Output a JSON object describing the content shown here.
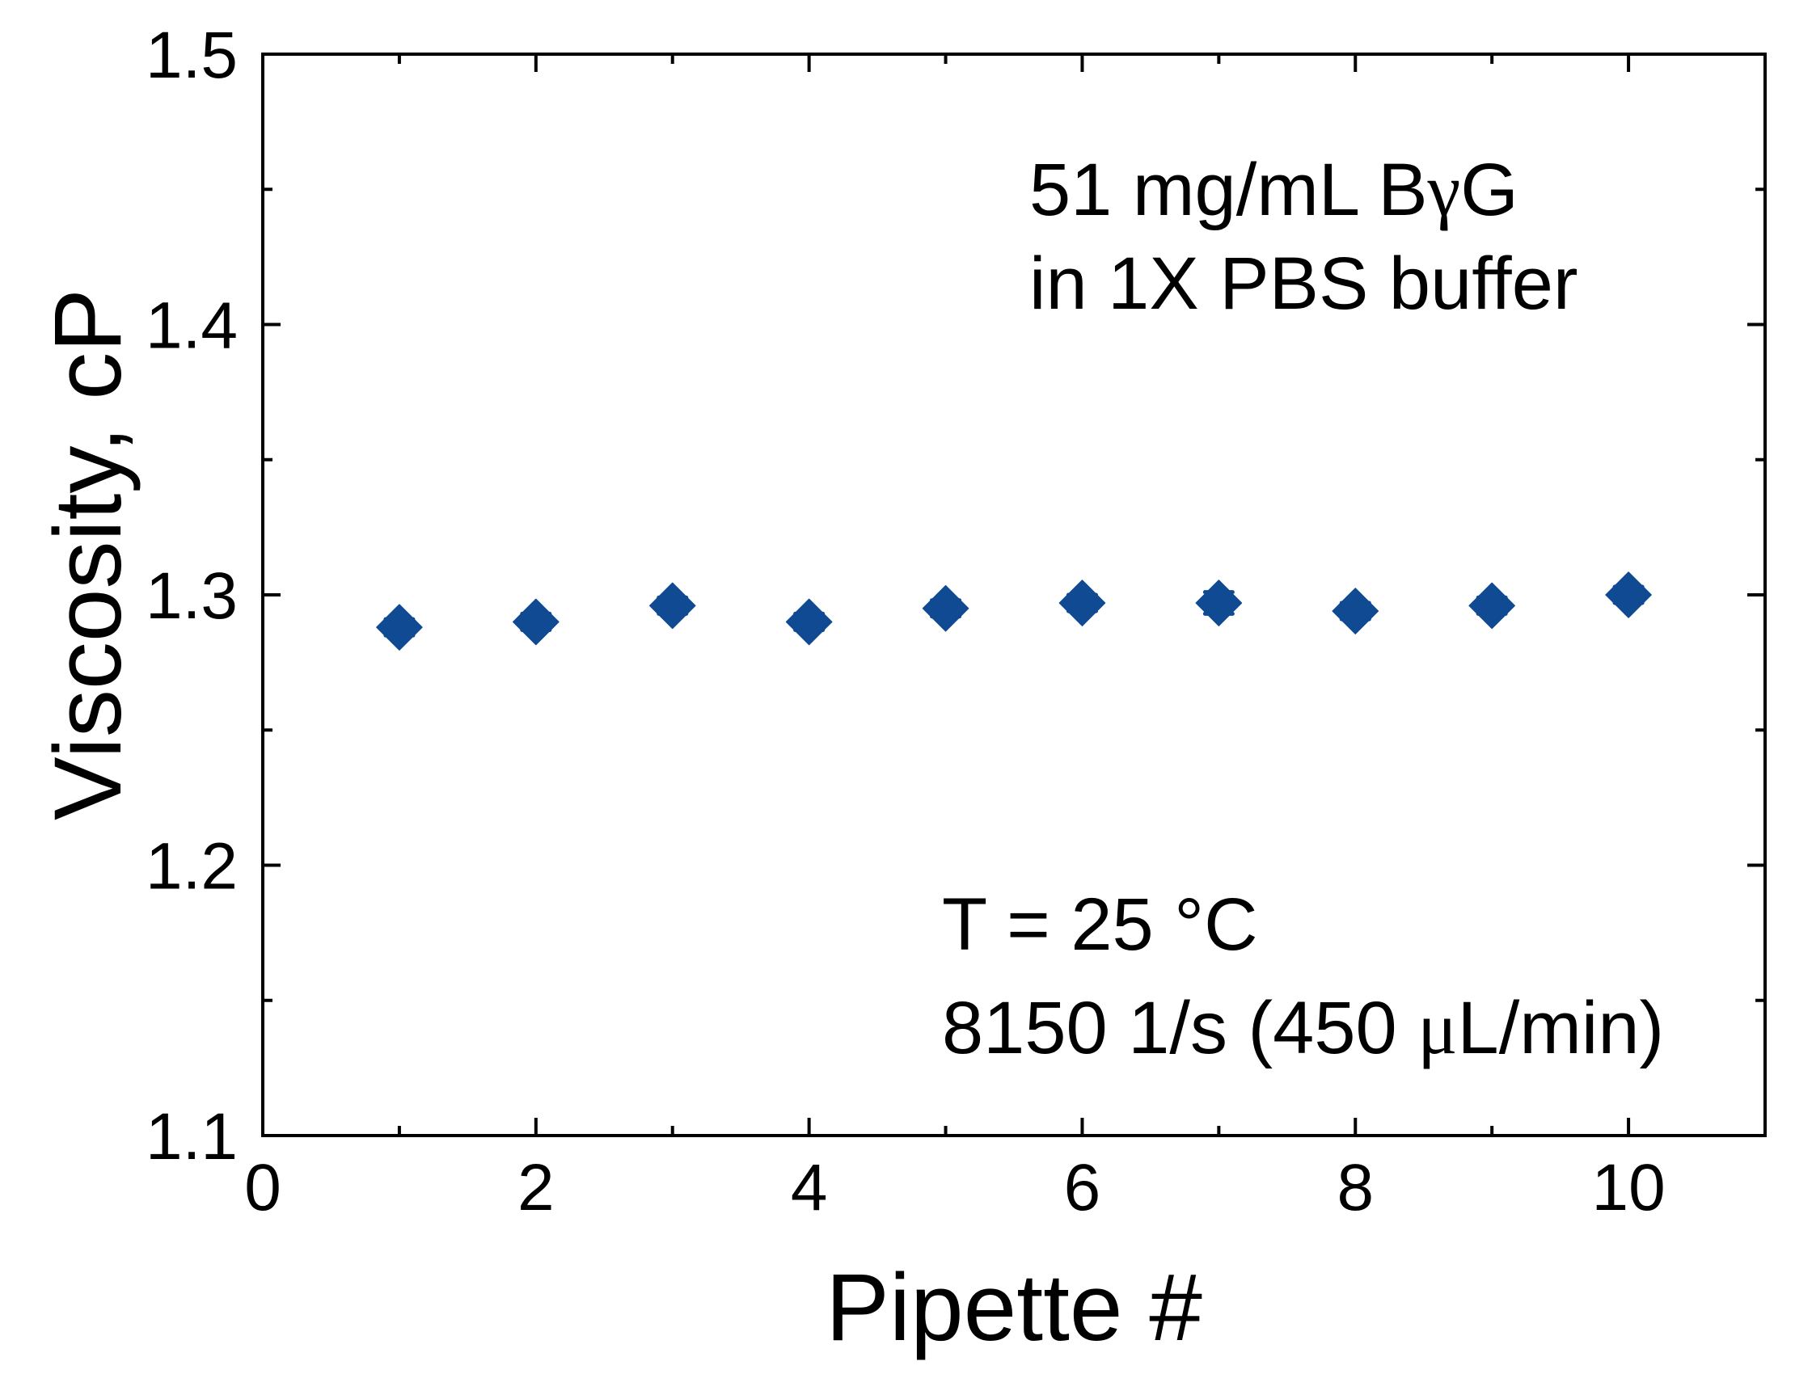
{
  "chart_data": {
    "type": "scatter",
    "title": "",
    "xlabel": "Pipette #",
    "ylabel": "Viscosity, cP",
    "xlim": [
      0,
      11
    ],
    "ylim": [
      1.1,
      1.5
    ],
    "x_ticks": [
      0,
      2,
      4,
      6,
      8,
      10
    ],
    "x_tick_labels": [
      "0",
      "2",
      "4",
      "6",
      "8",
      "10"
    ],
    "x_minor_ticks": [
      1,
      3,
      5,
      7,
      9
    ],
    "y_ticks": [
      1.1,
      1.2,
      1.3,
      1.4,
      1.5
    ],
    "y_tick_labels": [
      "1.1",
      "1.2",
      "1.3",
      "1.4",
      "1.5"
    ],
    "y_minor_ticks": [
      1.15,
      1.25,
      1.35,
      1.45
    ],
    "grid": false,
    "legend": null,
    "marker": "diamond",
    "marker_color": "#0f4a92",
    "series": [
      {
        "name": "51 mg/mL BγG",
        "x": [
          1,
          2,
          3,
          4,
          5,
          6,
          7,
          8,
          9,
          10
        ],
        "y": [
          1.288,
          1.29,
          1.296,
          1.29,
          1.295,
          1.297,
          1.297,
          1.294,
          1.296,
          1.3
        ],
        "error": [
          0.003,
          0.003,
          0.003,
          0.003,
          0.003,
          0.003,
          0.004,
          0.003,
          0.003,
          0.003
        ]
      }
    ],
    "annotations": [
      {
        "lines": [
          "51 mg/mL BγG",
          "in 1X PBS buffer"
        ],
        "position": "upper-right"
      },
      {
        "lines": [
          "T = 25 °C",
          "8150 1/s (450 μL/min)"
        ],
        "position": "lower-right"
      }
    ]
  },
  "labels": {
    "xlabel": "Pipette #",
    "ylabel": "Viscosity, cP",
    "annot1_line1_pre": "51 mg/mL B",
    "annot1_line1_greek": "γ",
    "annot1_line1_post": "G",
    "annot1_line2": "in 1X PBS buffer",
    "annot2_line1": "T = 25 °C",
    "annot2_line2_pre": "8150 1/s (450 ",
    "annot2_line2_greek": "μ",
    "annot2_line2_post": "L/min)"
  }
}
